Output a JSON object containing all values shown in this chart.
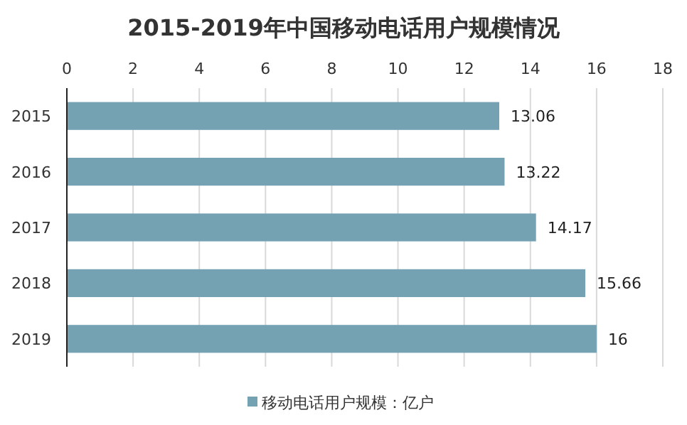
{
  "chart_data": {
    "type": "bar",
    "title": "2015-2019年中国移动电话用户规模情况",
    "orientation": "horizontal",
    "categories": [
      "2015",
      "2016",
      "2017",
      "2018",
      "2019"
    ],
    "series": [
      {
        "name": "移动电话用户规模：亿户",
        "color": "#75a2b3",
        "values": [
          13.06,
          13.22,
          14.17,
          15.66,
          16
        ]
      }
    ],
    "xlim": [
      0,
      18
    ],
    "xticks": [
      0,
      2,
      4,
      6,
      8,
      10,
      12,
      14,
      16,
      18
    ],
    "grid": "x",
    "legend": "bottom",
    "data_labels": true
  }
}
